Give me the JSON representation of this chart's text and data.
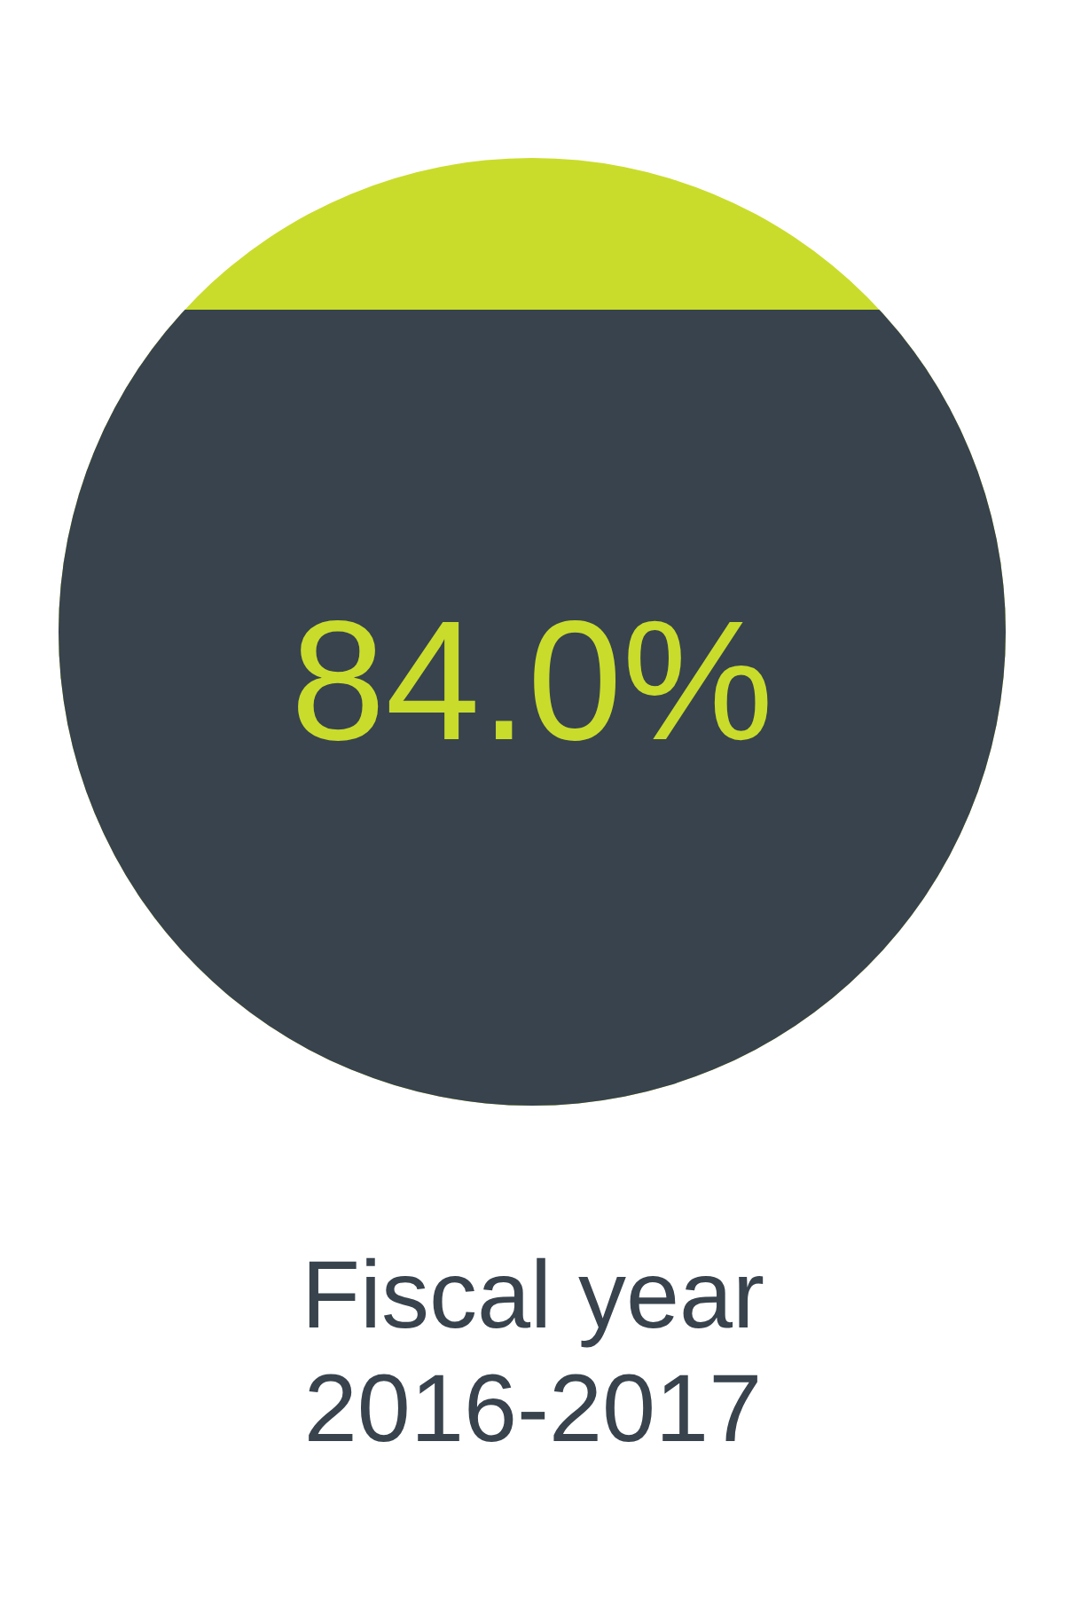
{
  "chart_data": {
    "type": "other",
    "title": "Fiscal year 2016-2017",
    "values": [
      84.0
    ],
    "value_labels": [
      "84.0%"
    ],
    "colors": [
      "#38434d"
    ],
    "color": "#c9dc2b"
  }
}
